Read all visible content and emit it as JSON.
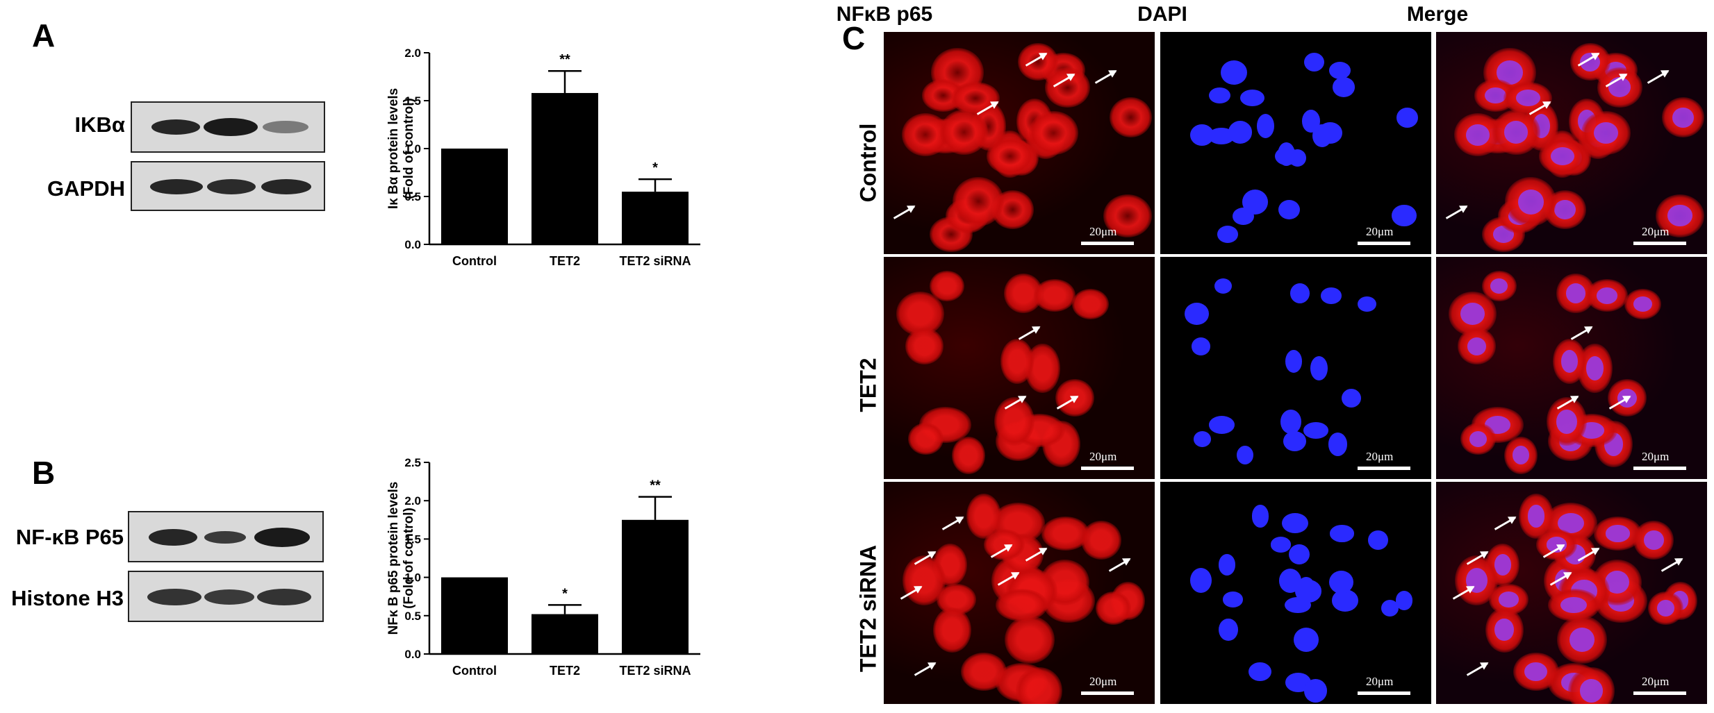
{
  "panels": {
    "A": {
      "letter": "A",
      "blot_labels": [
        "IKBα",
        "GAPDH"
      ]
    },
    "B": {
      "letter": "B",
      "blot_labels": [
        "NF-κB P65",
        "Histone H3"
      ]
    },
    "C": {
      "letter": "C",
      "columns": [
        "NFκB p65",
        "DAPI",
        "Merge"
      ],
      "rows": [
        "Control",
        "TET2",
        "TET2 siRNA"
      ],
      "scale_label": "20μm"
    }
  },
  "chart_data": [
    {
      "type": "bar",
      "title": "",
      "categories": [
        "Control",
        "TET2",
        "TET2 siRNA"
      ],
      "values": [
        1.0,
        1.58,
        0.55
      ],
      "errors": [
        0,
        0.23,
        0.13
      ],
      "significance": [
        "",
        "**",
        "*"
      ],
      "ylabel_line1": "Iκ Bα  protein levels",
      "ylabel_line2": "(Fold of control)",
      "ylim": [
        0,
        2.0
      ],
      "yticks": [
        "0.0",
        "0.5",
        "1.0",
        "1.5",
        "2.0"
      ],
      "bar_color": "#000000"
    },
    {
      "type": "bar",
      "title": "",
      "categories": [
        "Control",
        "TET2",
        "TET2 siRNA"
      ],
      "values": [
        1.0,
        0.52,
        1.75
      ],
      "errors": [
        0,
        0.12,
        0.3
      ],
      "significance": [
        "",
        "*",
        "**"
      ],
      "ylabel_line1": "NFκ B  p65  protein levels",
      "ylabel_line2": "(Fold of control)",
      "ylim": [
        0,
        2.5
      ],
      "yticks": [
        "0.0",
        "0.5",
        "1.0",
        "1.5",
        "2.0",
        "2.5"
      ],
      "bar_color": "#000000"
    }
  ],
  "colors": {
    "nfkb_red": "#ff1a1a",
    "dapi_blue": "#1a1aff",
    "merge_magenta": "#c040ff"
  }
}
